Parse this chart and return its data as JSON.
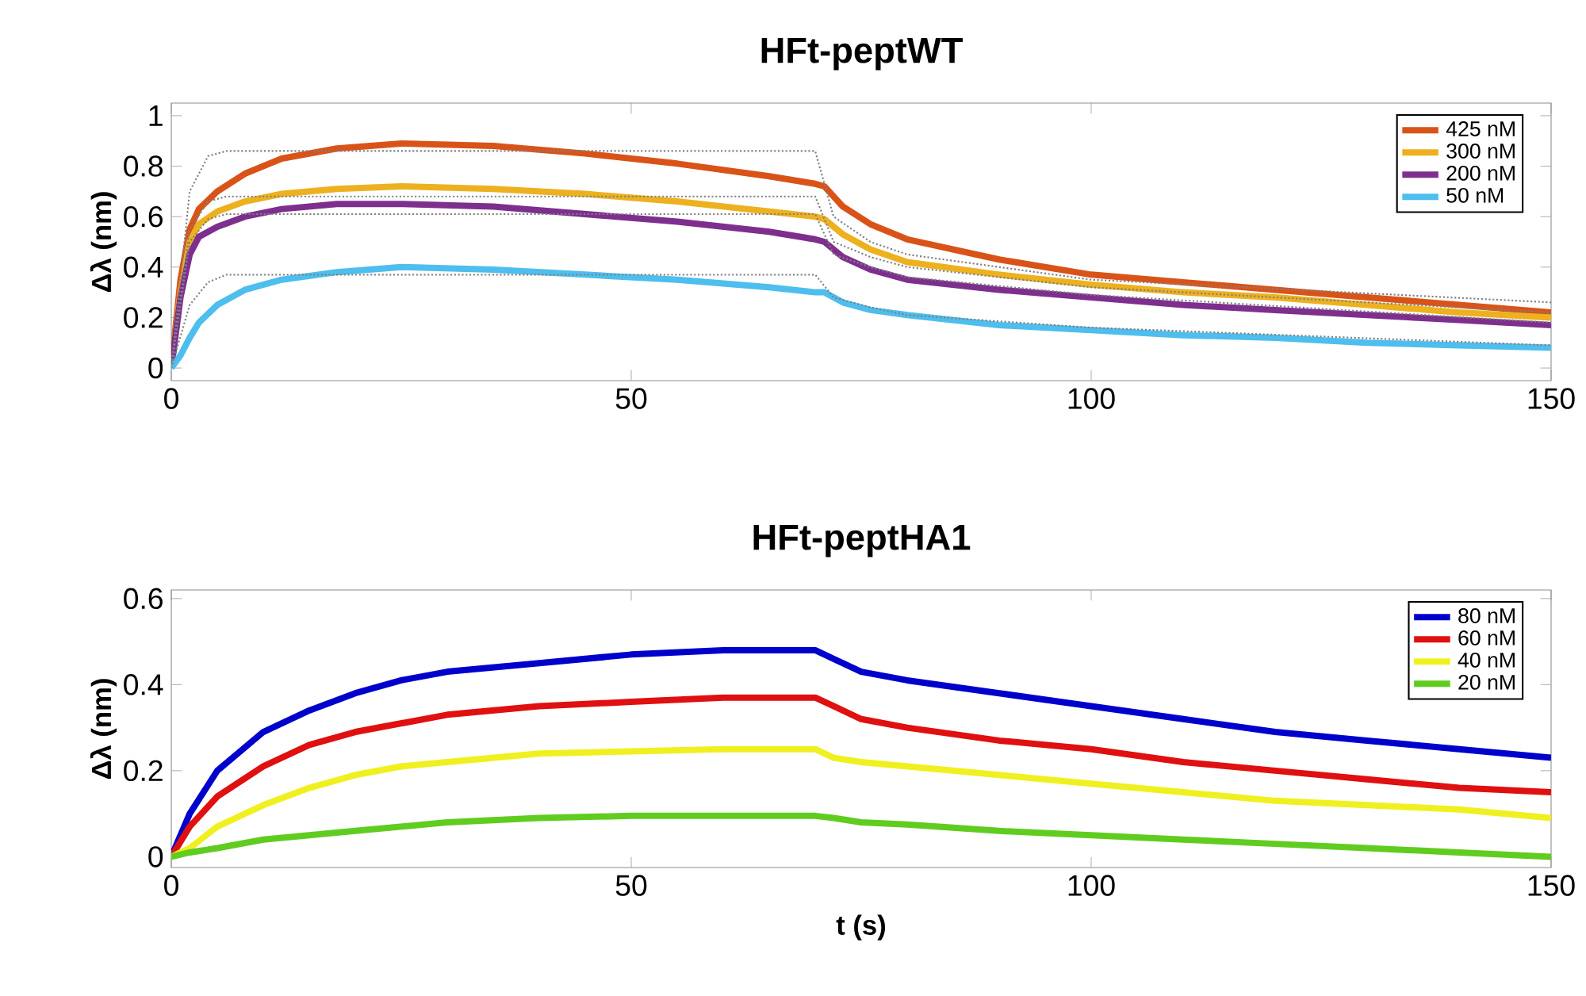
{
  "chart_data": [
    {
      "type": "line",
      "title": "HFt-peptWT",
      "ylabel": "Δλ (nm)",
      "xlim": [
        0,
        150
      ],
      "xticks": [
        0,
        50,
        100,
        150
      ],
      "ylim": [
        -0.05,
        1.05
      ],
      "yticks": [
        0,
        0.2,
        0.4,
        0.6,
        0.8,
        1
      ],
      "legend": "top right",
      "grid": false,
      "x": [
        0,
        1,
        2,
        3,
        5,
        8,
        12,
        18,
        25,
        35,
        45,
        55,
        65,
        70,
        71,
        73,
        76,
        80,
        90,
        100,
        110,
        120,
        130,
        140,
        150
      ],
      "series": [
        {
          "name": "425 nM",
          "color": "#d95319",
          "values": [
            0,
            0.35,
            0.55,
            0.63,
            0.7,
            0.77,
            0.83,
            0.87,
            0.89,
            0.88,
            0.85,
            0.81,
            0.76,
            0.73,
            0.72,
            0.64,
            0.57,
            0.51,
            0.43,
            0.37,
            0.34,
            0.31,
            0.28,
            0.25,
            0.22
          ]
        },
        {
          "name": "300 nM",
          "color": "#edb120",
          "values": [
            0,
            0.3,
            0.5,
            0.57,
            0.62,
            0.66,
            0.69,
            0.71,
            0.72,
            0.71,
            0.69,
            0.66,
            0.62,
            0.6,
            0.59,
            0.53,
            0.47,
            0.42,
            0.37,
            0.33,
            0.3,
            0.28,
            0.25,
            0.22,
            0.2
          ]
        },
        {
          "name": "200 nM",
          "color": "#7e2f8e",
          "values": [
            0,
            0.28,
            0.45,
            0.52,
            0.56,
            0.6,
            0.63,
            0.65,
            0.65,
            0.64,
            0.61,
            0.58,
            0.54,
            0.51,
            0.5,
            0.44,
            0.39,
            0.35,
            0.31,
            0.28,
            0.25,
            0.23,
            0.21,
            0.19,
            0.17
          ]
        },
        {
          "name": "50 nM",
          "color": "#4dbeee",
          "values": [
            0,
            0.05,
            0.12,
            0.18,
            0.25,
            0.31,
            0.35,
            0.38,
            0.4,
            0.39,
            0.37,
            0.35,
            0.32,
            0.3,
            0.3,
            0.26,
            0.23,
            0.21,
            0.17,
            0.15,
            0.13,
            0.12,
            0.1,
            0.09,
            0.08
          ]
        },
        {
          "color": "#808080",
          "line_style": "dotted",
          "x": [
            0,
            2,
            4,
            6,
            70,
            72,
            76,
            80,
            100,
            150
          ],
          "values": [
            0,
            0.7,
            0.84,
            0.86,
            0.86,
            0.6,
            0.5,
            0.45,
            0.35,
            0.26
          ]
        },
        {
          "color": "#808080",
          "line_style": "dotted",
          "x": [
            0,
            2,
            4,
            6,
            70,
            72,
            76,
            80,
            100,
            150
          ],
          "values": [
            0,
            0.55,
            0.66,
            0.68,
            0.68,
            0.5,
            0.44,
            0.4,
            0.32,
            0.22
          ]
        },
        {
          "color": "#808080",
          "line_style": "dotted",
          "x": [
            0,
            2,
            4,
            6,
            70,
            72,
            76,
            80,
            100,
            150
          ],
          "values": [
            0,
            0.5,
            0.59,
            0.61,
            0.61,
            0.45,
            0.4,
            0.36,
            0.29,
            0.18
          ]
        },
        {
          "color": "#808080",
          "line_style": "dotted",
          "x": [
            0,
            2,
            4,
            6,
            70,
            72,
            76,
            80,
            100,
            150
          ],
          "values": [
            0,
            0.25,
            0.34,
            0.37,
            0.37,
            0.28,
            0.24,
            0.21,
            0.16,
            0.09
          ]
        }
      ]
    },
    {
      "type": "line",
      "title": "HFt-peptHA1",
      "xlabel": "t (s)",
      "ylabel": "Δλ (nm)",
      "xlim": [
        0,
        150
      ],
      "xticks": [
        0,
        50,
        100,
        150
      ],
      "ylim": [
        -0.025,
        0.62
      ],
      "yticks": [
        0,
        0.2,
        0.4,
        0.6
      ],
      "legend": "top right",
      "grid": false,
      "x": [
        0,
        2,
        5,
        10,
        15,
        20,
        25,
        30,
        40,
        50,
        60,
        70,
        72,
        75,
        80,
        90,
        100,
        110,
        120,
        130,
        140,
        150
      ],
      "series": [
        {
          "name": "80 nM",
          "color": "#0000cc",
          "values": [
            0,
            0.1,
            0.2,
            0.29,
            0.34,
            0.38,
            0.41,
            0.43,
            0.45,
            0.47,
            0.48,
            0.48,
            0.46,
            0.43,
            0.41,
            0.38,
            0.35,
            0.32,
            0.29,
            0.27,
            0.25,
            0.23
          ]
        },
        {
          "name": "60 nM",
          "color": "#e01010",
          "values": [
            0,
            0.07,
            0.14,
            0.21,
            0.26,
            0.29,
            0.31,
            0.33,
            0.35,
            0.36,
            0.37,
            0.37,
            0.35,
            0.32,
            0.3,
            0.27,
            0.25,
            0.22,
            0.2,
            0.18,
            0.16,
            0.15
          ]
        },
        {
          "name": "40 nM",
          "color": "#f0f020",
          "values": [
            0,
            0.02,
            0.07,
            0.12,
            0.16,
            0.19,
            0.21,
            0.22,
            0.24,
            0.245,
            0.25,
            0.25,
            0.23,
            0.22,
            0.21,
            0.19,
            0.17,
            0.15,
            0.13,
            0.12,
            0.11,
            0.09
          ]
        },
        {
          "name": "20 nM",
          "color": "#60cc20",
          "values": [
            0,
            0.01,
            0.02,
            0.04,
            0.05,
            0.06,
            0.07,
            0.08,
            0.09,
            0.095,
            0.095,
            0.095,
            0.09,
            0.08,
            0.075,
            0.06,
            0.05,
            0.04,
            0.03,
            0.02,
            0.01,
            0
          ]
        }
      ]
    }
  ]
}
